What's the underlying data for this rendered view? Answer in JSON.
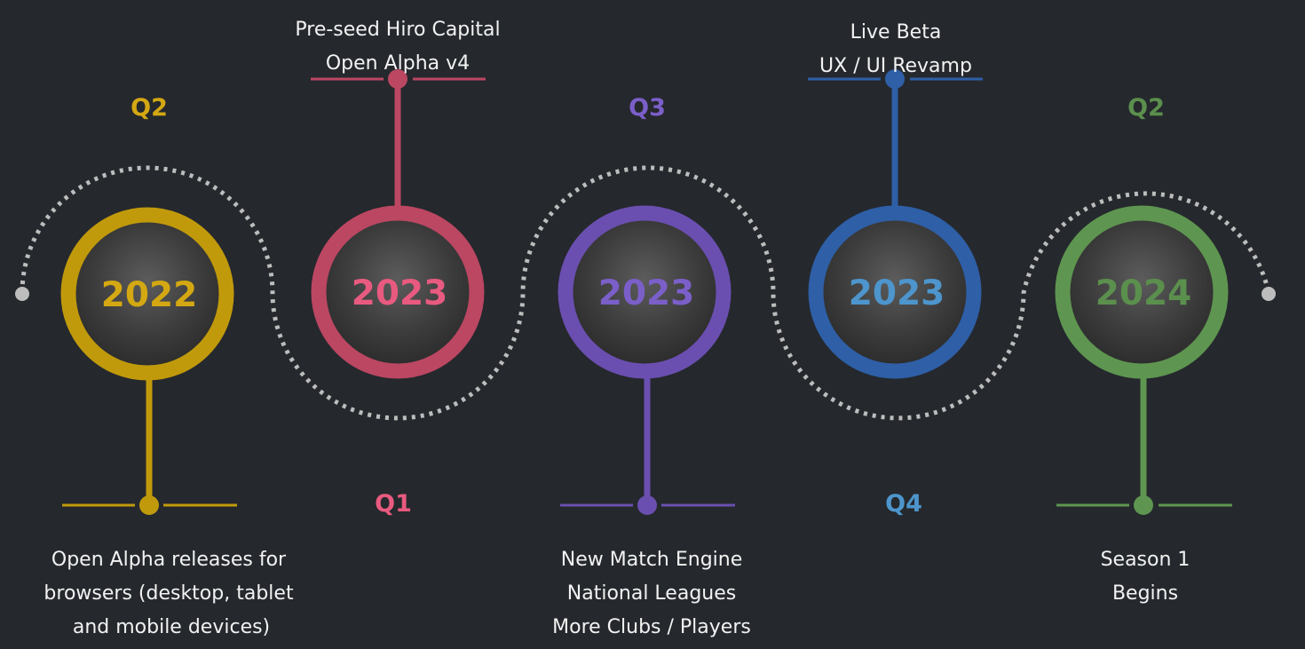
{
  "milestones": [
    {
      "year": "2022",
      "quarter": "Q2",
      "color": "#c19a0b",
      "year_color": "#d4a812",
      "lines": [
        "Open Alpha releases for",
        "browsers (desktop, tablet",
        "and mobile devices)"
      ]
    },
    {
      "year": "2023",
      "quarter": "Q1",
      "color": "#bb4762",
      "year_color": "#e85a7f",
      "lines": [
        "Pre-seed Hiro Capital",
        "Open Alpha v4"
      ]
    },
    {
      "year": "2023",
      "quarter": "Q3",
      "color": "#6a4fb0",
      "year_color": "#7b5fc9",
      "lines": [
        "New Match Engine",
        "National Leagues",
        "More Clubs / Players"
      ]
    },
    {
      "year": "2023",
      "quarter": "Q4",
      "color": "#2e5fa7",
      "year_color": "#4d95cc",
      "lines": [
        "Live Beta",
        "UX / UI Revamp"
      ]
    },
    {
      "year": "2024",
      "quarter": "Q2",
      "color": "#5e9550",
      "year_color": "#5b8f4d",
      "lines": [
        "Season 1",
        "Begins"
      ]
    }
  ]
}
